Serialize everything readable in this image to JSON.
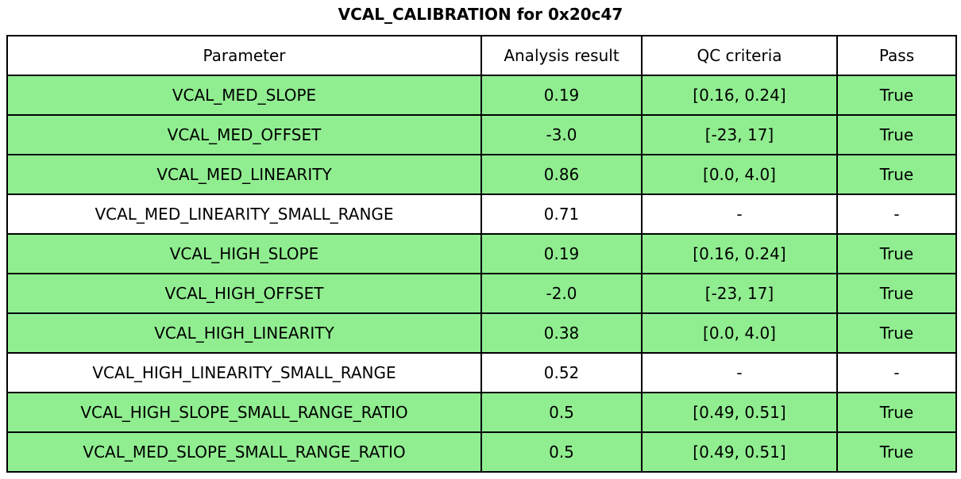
{
  "chart_data": {
    "type": "table",
    "title": "VCAL_CALIBRATION for 0x20c47",
    "columns": [
      "Parameter",
      "Analysis result",
      "QC criteria",
      "Pass"
    ],
    "rows": [
      [
        "VCAL_MED_SLOPE",
        "0.19",
        "[0.16, 0.24]",
        "True"
      ],
      [
        "VCAL_MED_OFFSET",
        "-3.0",
        "[-23, 17]",
        "True"
      ],
      [
        "VCAL_MED_LINEARITY",
        "0.86",
        "[0.0, 4.0]",
        "True"
      ],
      [
        "VCAL_MED_LINEARITY_SMALL_RANGE",
        "0.71",
        "-",
        "-"
      ],
      [
        "VCAL_HIGH_SLOPE",
        "0.19",
        "[0.16, 0.24]",
        "True"
      ],
      [
        "VCAL_HIGH_OFFSET",
        "-2.0",
        "[-23, 17]",
        "True"
      ],
      [
        "VCAL_HIGH_LINEARITY",
        "0.38",
        "[0.0, 4.0]",
        "True"
      ],
      [
        "VCAL_HIGH_LINEARITY_SMALL_RANGE",
        "0.52",
        "-",
        "-"
      ],
      [
        "VCAL_HIGH_SLOPE_SMALL_RANGE_RATIO",
        "0.5",
        "[0.49, 0.51]",
        "True"
      ],
      [
        "VCAL_MED_SLOPE_SMALL_RANGE_RATIO",
        "0.5",
        "[0.49, 0.51]",
        "True"
      ]
    ],
    "row_pass_highlight": [
      true,
      true,
      true,
      false,
      true,
      true,
      true,
      false,
      true,
      true
    ],
    "layout": {
      "legend": "none",
      "grid": "full-borders"
    },
    "colors": {
      "pass_row_bg": "#90EE90",
      "neutral_row_bg": "#FFFFFF",
      "border": "#000000",
      "text": "#000000"
    }
  }
}
